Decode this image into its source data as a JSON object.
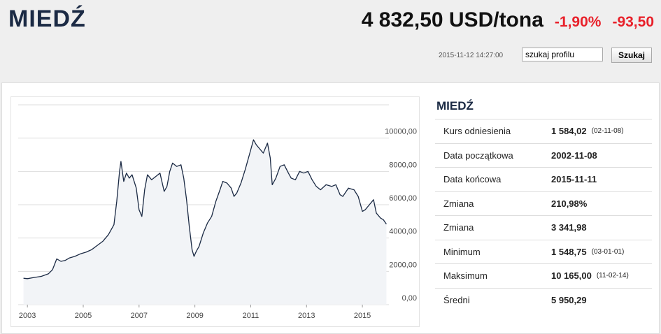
{
  "header": {
    "title": "MIEDŹ",
    "price": "4 832,50 USD/tona",
    "change_pct": "-1,90%",
    "change": "-93,50",
    "timestamp": "2015-11-12 14:27:00",
    "search_placeholder": "szukaj profilu",
    "search_button": "Szukaj"
  },
  "chart_data": {
    "type": "line",
    "color": "#1b2a44",
    "fill": "#f2f4f7",
    "grid": true,
    "x": [
      2002.86,
      2003.0,
      2003.2,
      2003.5,
      2003.75,
      2003.9,
      2004.05,
      2004.2,
      2004.35,
      2004.5,
      2004.7,
      2004.9,
      2005.1,
      2005.3,
      2005.5,
      2005.7,
      2005.9,
      2006.1,
      2006.2,
      2006.3,
      2006.35,
      2006.45,
      2006.55,
      2006.65,
      2006.75,
      2006.9,
      2007.0,
      2007.1,
      2007.2,
      2007.3,
      2007.45,
      2007.6,
      2007.75,
      2007.9,
      2008.0,
      2008.1,
      2008.2,
      2008.35,
      2008.5,
      2008.6,
      2008.7,
      2008.8,
      2008.9,
      2008.97,
      2009.05,
      2009.15,
      2009.3,
      2009.45,
      2009.6,
      2009.75,
      2009.9,
      2010.0,
      2010.15,
      2010.3,
      2010.4,
      2010.5,
      2010.65,
      2010.8,
      2010.95,
      2011.1,
      2011.2,
      2011.3,
      2011.45,
      2011.6,
      2011.7,
      2011.77,
      2011.9,
      2012.05,
      2012.2,
      2012.35,
      2012.45,
      2012.6,
      2012.75,
      2012.9,
      2013.05,
      2013.2,
      2013.35,
      2013.5,
      2013.7,
      2013.9,
      2014.05,
      2014.2,
      2014.3,
      2014.5,
      2014.7,
      2014.85,
      2015.0,
      2015.1,
      2015.25,
      2015.4,
      2015.5,
      2015.65,
      2015.75,
      2015.86
    ],
    "values": [
      1584,
      1560,
      1620,
      1700,
      1850,
      2100,
      2750,
      2600,
      2650,
      2800,
      2900,
      3050,
      3150,
      3300,
      3550,
      3800,
      4200,
      4800,
      6200,
      8000,
      8600,
      7400,
      7900,
      7600,
      7800,
      7000,
      5700,
      5300,
      6900,
      7800,
      7500,
      7700,
      7900,
      6800,
      7100,
      8000,
      8500,
      8300,
      8400,
      7600,
      6300,
      4700,
      3300,
      2900,
      3200,
      3500,
      4300,
      4900,
      5300,
      6200,
      6900,
      7400,
      7300,
      7000,
      6500,
      6700,
      7300,
      8100,
      9000,
      9900,
      9600,
      9400,
      9100,
      9700,
      8800,
      7200,
      7600,
      8300,
      8400,
      7900,
      7600,
      7500,
      8000,
      7900,
      8000,
      7500,
      7100,
      6900,
      7200,
      7100,
      7200,
      6600,
      6500,
      7000,
      6900,
      6500,
      5600,
      5700,
      6000,
      6300,
      5500,
      5200,
      5100,
      4832.5
    ],
    "xlim": [
      2002.67,
      2015.95
    ],
    "xticks": [
      2003,
      2005,
      2007,
      2009,
      2011,
      2013,
      2015
    ],
    "ylim": [
      0,
      12000
    ],
    "yticks": [
      {
        "value": 0,
        "label": "0,00"
      },
      {
        "value": 2000,
        "label": "2000,00"
      },
      {
        "value": 4000,
        "label": "4000,00"
      },
      {
        "value": 6000,
        "label": "6000,00"
      },
      {
        "value": 8000,
        "label": "8000,00"
      },
      {
        "value": 10000,
        "label": "10000,00"
      },
      12000
    ]
  },
  "stats": {
    "title": "MIEDŹ",
    "rows": [
      [
        "Kurs odniesienia",
        "1 584,02",
        "(02-11-08)"
      ],
      [
        "Data początkowa",
        "2002-11-08"
      ],
      [
        "Data końcowa",
        "2015-11-11"
      ],
      [
        "Zmiana",
        "210,98%"
      ],
      [
        "Zmiana",
        "3 341,98"
      ],
      [
        "Minimum",
        "1 548,75",
        "(03-01-01)"
      ],
      [
        "Maksimum",
        "10 165,00",
        "(11-02-14)"
      ],
      [
        "Średni",
        "5 950,29"
      ]
    ]
  }
}
